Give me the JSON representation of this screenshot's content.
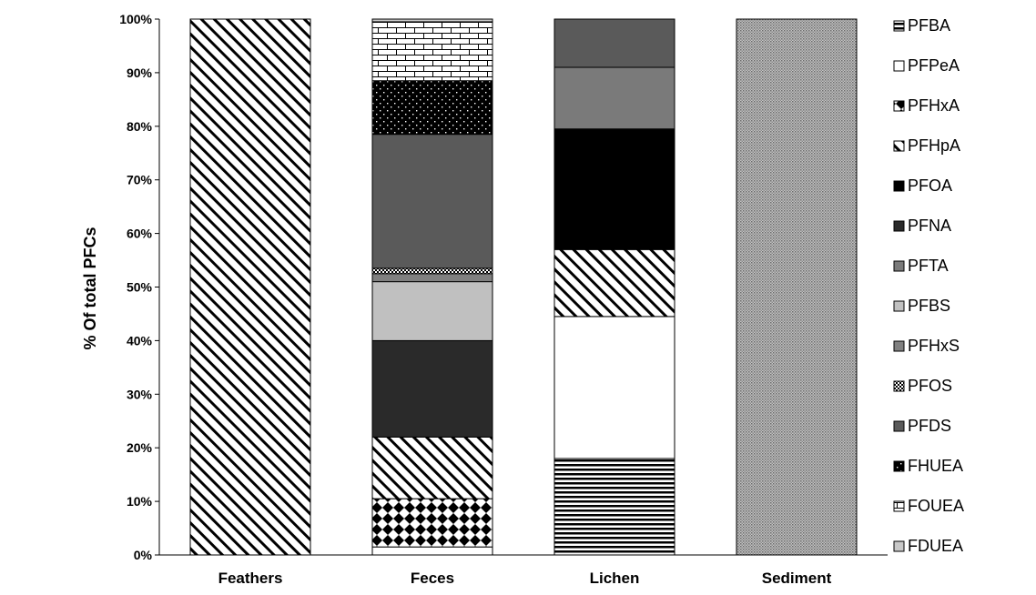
{
  "chart_data": {
    "type": "bar",
    "stacked": true,
    "title": "",
    "xlabel": "",
    "ylabel": "% Of total PFCs",
    "ylim": [
      0,
      100
    ],
    "yticks": [
      "0%",
      "10%",
      "20%",
      "30%",
      "40%",
      "50%",
      "60%",
      "70%",
      "80%",
      "90%",
      "100%"
    ],
    "categories": [
      "Feathers",
      "Feces",
      "Lichen",
      "Sediment"
    ],
    "series": [
      {
        "name": "PFBA",
        "pattern": "hlines",
        "values": [
          0,
          0,
          18,
          0
        ]
      },
      {
        "name": "PFPeA",
        "pattern": "white",
        "values": [
          0,
          1.5,
          26.5,
          0
        ]
      },
      {
        "name": "PFHxA",
        "pattern": "diamonds",
        "values": [
          0,
          9,
          0,
          0
        ]
      },
      {
        "name": "PFHpA",
        "pattern": "diagonal",
        "values": [
          100,
          11.5,
          12.5,
          0
        ]
      },
      {
        "name": "PFOA",
        "pattern": "black",
        "values": [
          0,
          0,
          22.5,
          0
        ]
      },
      {
        "name": "PFNA",
        "pattern": "darkgray",
        "values": [
          0,
          18,
          0,
          0
        ]
      },
      {
        "name": "PFTA",
        "pattern": "gray",
        "values": [
          0,
          0,
          11.5,
          0
        ]
      },
      {
        "name": "PFBS",
        "pattern": "lightgray",
        "values": [
          0,
          11,
          0,
          0
        ]
      },
      {
        "name": "PFHxS",
        "pattern": "midgray",
        "values": [
          0,
          1.5,
          0,
          0
        ]
      },
      {
        "name": "PFOS",
        "pattern": "checker",
        "values": [
          0,
          1,
          0,
          0
        ]
      },
      {
        "name": "PFDS",
        "pattern": "dimgray",
        "values": [
          0,
          25,
          9,
          0
        ]
      },
      {
        "name": "FHUEA",
        "pattern": "dots",
        "values": [
          0,
          10,
          0,
          0
        ]
      },
      {
        "name": "FOUEA",
        "pattern": "bricks",
        "values": [
          0,
          11,
          0,
          0
        ]
      },
      {
        "name": "FDUEA",
        "pattern": "lightgray2",
        "values": [
          0,
          0.5,
          0,
          0
        ]
      },
      {
        "name": "",
        "pattern": "crosshatch",
        "values": [
          0,
          0,
          0,
          100
        ]
      }
    ],
    "grid": false,
    "legend_position": "right"
  }
}
